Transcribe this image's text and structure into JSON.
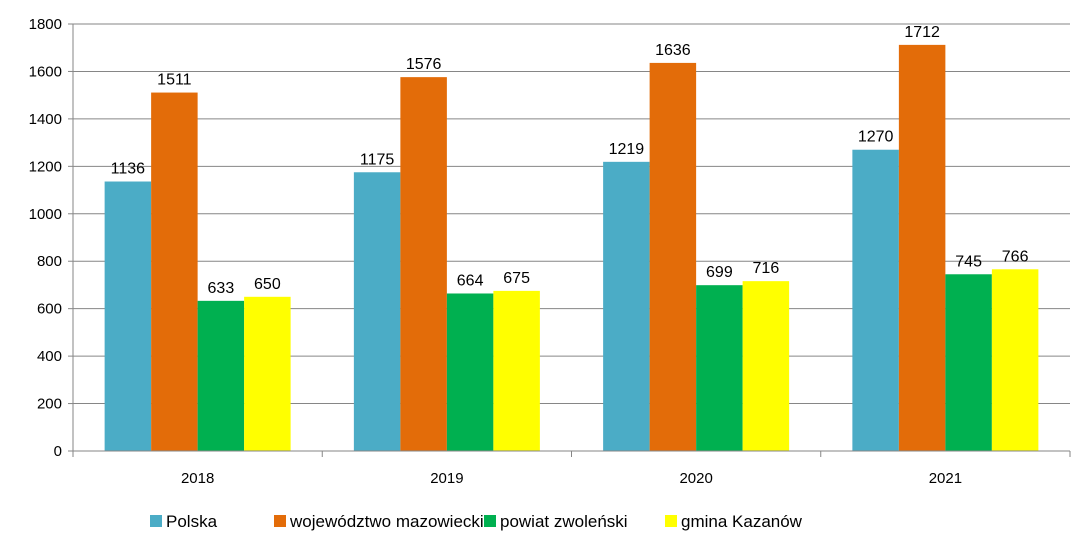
{
  "chart_data": {
    "type": "bar",
    "categories": [
      "2018",
      "2019",
      "2020",
      "2021"
    ],
    "series": [
      {
        "name": "Polska",
        "color": "#4BACC6",
        "values": [
          1136,
          1175,
          1219,
          1270
        ]
      },
      {
        "name": "województwo mazowieckie",
        "color": "#E36C09",
        "values": [
          1511,
          1576,
          1636,
          1712
        ]
      },
      {
        "name": "powiat zwoleński",
        "color": "#00B050",
        "values": [
          633,
          664,
          699,
          745
        ]
      },
      {
        "name": "gmina Kazanów",
        "color": "#FFFF00",
        "values": [
          650,
          675,
          716,
          766
        ]
      }
    ],
    "ylim": [
      0,
      1800
    ],
    "yticks": [
      0,
      200,
      400,
      600,
      800,
      1000,
      1200,
      1400,
      1600,
      1800
    ],
    "grid": true,
    "legend": "bottom"
  }
}
